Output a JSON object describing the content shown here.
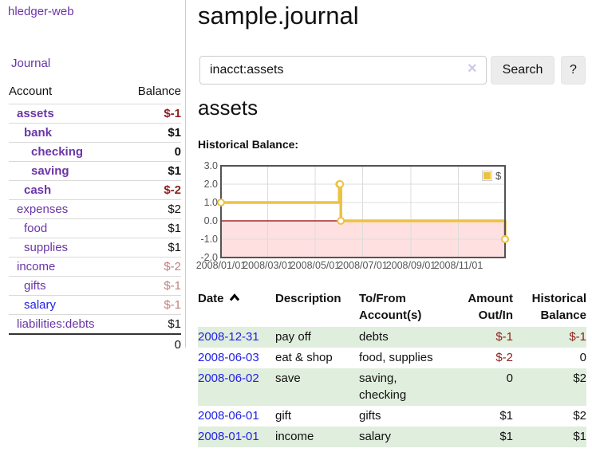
{
  "app": {
    "brand": "hledger-web"
  },
  "sidebar": {
    "nav_journal": "Journal",
    "accounts": {
      "header_account": "Account",
      "header_balance": "Balance",
      "rows": [
        {
          "name": "assets",
          "depth": 1,
          "bold": true,
          "link": "purple",
          "balance": "$-1",
          "balance_style": "negative"
        },
        {
          "name": "bank",
          "depth": 2,
          "bold": true,
          "link": "purple",
          "balance": "$1",
          "balance_style": "plain"
        },
        {
          "name": "checking",
          "depth": 3,
          "bold": true,
          "link": "purple",
          "balance": "0",
          "balance_style": "plain"
        },
        {
          "name": "saving",
          "depth": 3,
          "bold": true,
          "link": "purple",
          "balance": "$1",
          "balance_style": "plain"
        },
        {
          "name": "cash",
          "depth": 2,
          "bold": true,
          "link": "purple",
          "balance": "$-2",
          "balance_style": "negative"
        },
        {
          "name": "expenses",
          "depth": 1,
          "bold": false,
          "link": "purple",
          "balance": "$2",
          "balance_style": "plain"
        },
        {
          "name": "food",
          "depth": 2,
          "bold": false,
          "link": "purple",
          "balance": "$1",
          "balance_style": "plain"
        },
        {
          "name": "supplies",
          "depth": 2,
          "bold": false,
          "link": "purple",
          "balance": "$1",
          "balance_style": "plain"
        },
        {
          "name": "income",
          "depth": 1,
          "bold": false,
          "link": "purple",
          "balance": "$-2",
          "balance_style": "negative-muted"
        },
        {
          "name": "gifts",
          "depth": 2,
          "bold": false,
          "link": "purple",
          "balance": "$-1",
          "balance_style": "negative-muted"
        },
        {
          "name": "salary",
          "depth": 2,
          "bold": false,
          "link": "blue",
          "balance": "$-1",
          "balance_style": "negative-muted"
        },
        {
          "name": "liabilities:debts",
          "depth": 1,
          "bold": false,
          "link": "purple",
          "balance": "$1",
          "balance_style": "plain"
        }
      ],
      "total": "0"
    }
  },
  "main": {
    "title": "sample.journal",
    "search": {
      "value": "inacct:assets",
      "clear_icon": "×",
      "button_label": "Search",
      "help_label": "?"
    },
    "account_heading": "assets",
    "section_label": "Historical Balance:"
  },
  "chart_data": {
    "type": "line",
    "step": true,
    "title": "Historical Balance:",
    "series": [
      {
        "name": "$",
        "color": "#edc240",
        "points": [
          [
            "2008-01-01",
            1
          ],
          [
            "2008-06-01",
            2
          ],
          [
            "2008-06-02",
            2
          ],
          [
            "2008-06-03",
            0
          ],
          [
            "2008-12-31",
            -1
          ]
        ]
      }
    ],
    "x_range": [
      "2008-01-01",
      "2008-12-31"
    ],
    "ylim": [
      -2,
      3
    ],
    "y_ticks": [
      {
        "value": 3,
        "label": "3.0"
      },
      {
        "value": 2,
        "label": "2.0"
      },
      {
        "value": 1,
        "label": "1.0"
      },
      {
        "value": 0,
        "label": "0.0"
      },
      {
        "value": -1,
        "label": "-1.0"
      },
      {
        "value": -2,
        "label": "-2.0"
      }
    ],
    "x_ticks": [
      {
        "date": "2008-01-01",
        "label": "2008/01/01"
      },
      {
        "date": "2008-03-01",
        "label": "2008/03/01"
      },
      {
        "date": "2008-05-01",
        "label": "2008/05/01"
      },
      {
        "date": "2008-07-01",
        "label": "2008/07/01"
      },
      {
        "date": "2008-09-01",
        "label": "2008/09/01"
      },
      {
        "date": "2008-11-01",
        "label": "2008/11/01"
      }
    ],
    "legend_position": "top-right",
    "grid": true,
    "zero_line_color": "#8f0000",
    "negative_region_fill": "rgba(255,0,0,0.12)",
    "grid_line_color": "#dcdcdc",
    "border_color": "#545454"
  },
  "register": {
    "columns": [
      [
        "Date"
      ],
      [
        "Description"
      ],
      [
        "To/From",
        "Account(s)"
      ],
      [
        "Amount",
        "Out/In"
      ],
      [
        "Historical",
        "Balance"
      ]
    ],
    "sort": {
      "column": "Date",
      "direction": "ascending"
    },
    "rows": [
      {
        "date": "2008-12-31",
        "description": "pay off",
        "accounts": "debts",
        "amount": "$-1",
        "amount_negative": true,
        "balance": "$-1",
        "balance_negative": true,
        "highlight": true
      },
      {
        "date": "2008-06-03",
        "description": "eat & shop",
        "accounts": "food, supplies",
        "amount": "$-2",
        "amount_negative": true,
        "balance": "0",
        "balance_negative": false,
        "highlight": false
      },
      {
        "date": "2008-06-02",
        "description": "save",
        "accounts": "saving, checking",
        "amount": "0",
        "amount_negative": false,
        "balance": "$2",
        "balance_negative": false,
        "highlight": true
      },
      {
        "date": "2008-06-01",
        "description": "gift",
        "accounts": "gifts",
        "amount": "$1",
        "amount_negative": false,
        "balance": "$2",
        "balance_negative": false,
        "highlight": false
      },
      {
        "date": "2008-01-01",
        "description": "income",
        "accounts": "salary",
        "amount": "$1",
        "amount_negative": false,
        "balance": "$1",
        "balance_negative": false,
        "highlight": true
      }
    ]
  },
  "colors": {
    "link_purple": "#6a35a8",
    "link_blue": "#2222e6",
    "negative": "#8f1d1d",
    "negative_muted": "#c08080",
    "row_green": "#e0eedd",
    "series_gold": "#edc240",
    "button_bg": "#ececec"
  }
}
